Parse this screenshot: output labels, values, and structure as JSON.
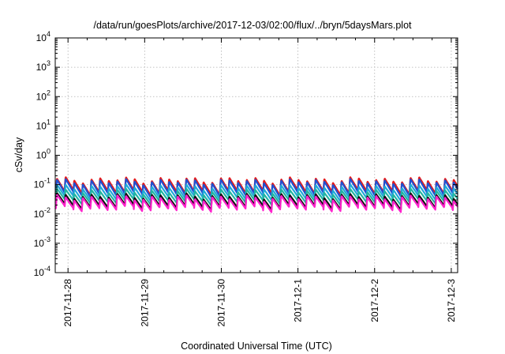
{
  "chart_data": {
    "type": "line",
    "title": "/data/run/goesPlots/archive/2017-12-03/02:00/flux/../bryn/5daysMars.plot",
    "xlabel": "Coordinated Universal Time (UTC)",
    "ylabel": "cSv/day",
    "y_scale": "log",
    "ylim": [
      0.0001,
      10000
    ],
    "xlim": [
      "2017-11-27T20:00",
      "2017-12-03T02:00"
    ],
    "grid": true,
    "x_tick_labels": [
      "2017-11-28",
      "2017-11-29",
      "2017-11-30",
      "2017-12-1",
      "2017-12-2",
      "2017-12-3"
    ],
    "y_ticks": [
      {
        "base": "10",
        "exp": "-4"
      },
      {
        "base": "10",
        "exp": "-3"
      },
      {
        "base": "10",
        "exp": "-2"
      },
      {
        "base": "10",
        "exp": "-1"
      },
      {
        "base": "10",
        "exp": "0"
      },
      {
        "base": "10",
        "exp": "1"
      },
      {
        "base": "10",
        "exp": "2"
      },
      {
        "base": "10",
        "exp": "3"
      },
      {
        "base": "10",
        "exp": "4"
      }
    ],
    "pattern": {
      "description_of_shape": "sawtooth: sharp rise followed by decay, repeating roughly every 2.7 hours",
      "period_hours": 2.7
    },
    "series": [
      {
        "color": "#e41a1c",
        "peak": 0.15,
        "trough": 0.055
      },
      {
        "color": "#2050d0",
        "peak": 0.13,
        "trough": 0.047
      },
      {
        "color": "#1fa9d8",
        "peak": 0.085,
        "trough": 0.035
      },
      {
        "color": "#22b5a0",
        "peak": 0.06,
        "trough": 0.026
      },
      {
        "color": "#111111",
        "peak": 0.042,
        "trough": 0.018
      },
      {
        "color": "#ff22cc",
        "peak": 0.036,
        "trough": 0.015
      }
    ]
  }
}
